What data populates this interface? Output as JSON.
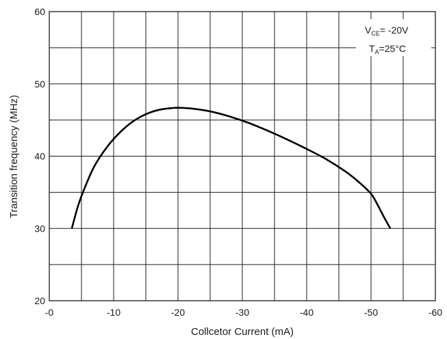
{
  "chart_data": {
    "type": "line",
    "title": "",
    "xlabel": "Collcetor Current (mA)",
    "ylabel": "Transition frequency (MHz)",
    "xlim": [
      0,
      -60
    ],
    "ylim": [
      20,
      60
    ],
    "x_ticks": [
      0,
      -10,
      -20,
      -30,
      -40,
      -50,
      -60
    ],
    "x_tick_labels": [
      "-0",
      "-10",
      "-20",
      "-30",
      "-40",
      "-50",
      "-60"
    ],
    "y_ticks": [
      20,
      30,
      40,
      50,
      60
    ],
    "y_tick_labels": [
      "20",
      "30",
      "40",
      "50",
      "60"
    ],
    "x_grid_step": 5,
    "y_grid_step": 5,
    "grid": true,
    "legend": "none",
    "series": [
      {
        "x": [
          -3.5,
          -4.5,
          -5.5,
          -7,
          -9,
          -11,
          -13,
          -15,
          -17,
          -19,
          -20,
          -22,
          -25,
          -28,
          -31,
          -34,
          -37,
          -40,
          -43,
          -46,
          -48,
          -50,
          -51,
          -52,
          -53
        ],
        "y": [
          30,
          33.2,
          35.6,
          38.6,
          41.3,
          43.3,
          44.8,
          45.8,
          46.4,
          46.65,
          46.7,
          46.6,
          46.2,
          45.5,
          44.6,
          43.5,
          42.3,
          41,
          39.6,
          37.9,
          36.5,
          34.8,
          33.3,
          31.6,
          30
        ]
      }
    ],
    "annotations": {
      "vce": {
        "main": "V",
        "sub": "CE",
        "rest": "= -20V"
      },
      "ta": {
        "main": "T",
        "sub": "A",
        "rest": "=25°C"
      }
    },
    "colors": {
      "line": "#000000",
      "grid": "#1a1a1a",
      "text": "#1a1a1a"
    }
  }
}
